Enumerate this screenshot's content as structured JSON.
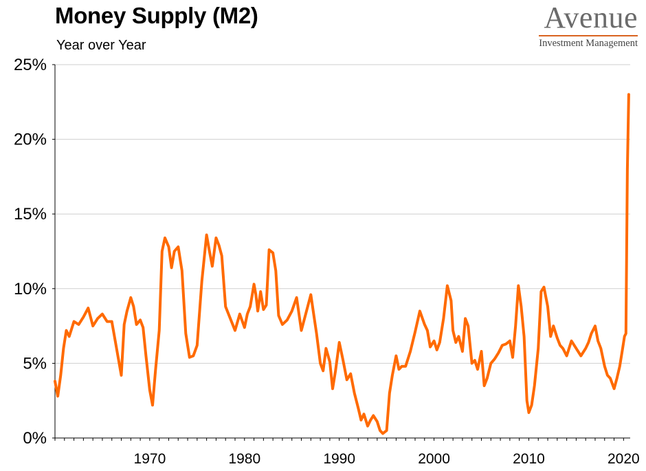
{
  "header": {
    "title": "Money Supply (M2)",
    "subtitle": "Year over Year"
  },
  "logo": {
    "name": "Avenue",
    "tagline": "Investment Management",
    "rule_color": "#d9621f"
  },
  "chart_data": {
    "type": "line",
    "title": "Money Supply (M2)",
    "subtitle": "Year over Year",
    "xlabel": "",
    "ylabel": "",
    "xlim": [
      1960,
      2020.7
    ],
    "ylim": [
      0,
      25
    ],
    "y_ticks": [
      0,
      5,
      10,
      15,
      20,
      25
    ],
    "y_tick_labels": [
      "0%",
      "5%",
      "10%",
      "15%",
      "20%",
      "25%"
    ],
    "x_ticks": [
      1970,
      1980,
      1990,
      2000,
      2010,
      2020
    ],
    "x_tick_labels": [
      "1970",
      "1980",
      "1990",
      "2000",
      "2010",
      "2020"
    ],
    "grid": true,
    "grid_axis": "y",
    "line_color": "#ff6a00",
    "series": [
      {
        "x": [
          1960.0,
          1960.3,
          1960.6,
          1960.9,
          1961.2,
          1961.5,
          1962.0,
          1962.5,
          1963.0,
          1963.5,
          1964.0,
          1964.5,
          1965.0,
          1965.5,
          1966.0,
          1966.5,
          1967.0,
          1967.3,
          1967.6,
          1968.0,
          1968.3,
          1968.6,
          1969.0,
          1969.3,
          1969.6,
          1970.0,
          1970.3,
          1970.6,
          1971.0,
          1971.3,
          1971.6,
          1972.0,
          1972.3,
          1972.6,
          1973.0,
          1973.4,
          1973.8,
          1974.2,
          1974.6,
          1975.0,
          1975.5,
          1976.0,
          1976.3,
          1976.6,
          1977.0,
          1977.3,
          1977.6,
          1978.0,
          1978.5,
          1979.0,
          1979.5,
          1980.0,
          1980.3,
          1980.6,
          1981.0,
          1981.2,
          1981.4,
          1981.7,
          1982.0,
          1982.3,
          1982.6,
          1983.0,
          1983.3,
          1983.6,
          1984.0,
          1984.5,
          1985.0,
          1985.5,
          1986.0,
          1986.5,
          1987.0,
          1987.3,
          1987.6,
          1988.0,
          1988.3,
          1988.6,
          1989.0,
          1989.3,
          1989.6,
          1990.0,
          1990.4,
          1990.8,
          1991.2,
          1991.6,
          1992.0,
          1992.3,
          1992.6,
          1993.0,
          1993.3,
          1993.6,
          1994.0,
          1994.3,
          1994.6,
          1995.0,
          1995.3,
          1995.6,
          1996.0,
          1996.3,
          1996.6,
          1997.0,
          1997.5,
          1998.0,
          1998.5,
          1999.0,
          1999.3,
          1999.6,
          2000.0,
          2000.3,
          2000.6,
          2001.0,
          2001.4,
          2001.8,
          2002.0,
          2002.3,
          2002.6,
          2003.0,
          2003.3,
          2003.6,
          2004.0,
          2004.3,
          2004.6,
          2005.0,
          2005.3,
          2005.6,
          2006.0,
          2006.4,
          2006.8,
          2007.2,
          2007.6,
          2008.0,
          2008.3,
          2008.6,
          2008.9,
          2009.2,
          2009.5,
          2009.8,
          2010.0,
          2010.3,
          2010.6,
          2011.0,
          2011.3,
          2011.6,
          2012.0,
          2012.3,
          2012.6,
          2013.0,
          2013.3,
          2013.6,
          2014.0,
          2014.5,
          2015.0,
          2015.5,
          2016.0,
          2016.3,
          2016.6,
          2017.0,
          2017.3,
          2017.6,
          2018.0,
          2018.3,
          2018.6,
          2019.0,
          2019.3,
          2019.6,
          2019.9,
          2020.1,
          2020.25,
          2020.4,
          2020.55
        ],
        "y": [
          3.8,
          2.8,
          4.2,
          6.0,
          7.2,
          6.8,
          7.8,
          7.6,
          8.1,
          8.7,
          7.5,
          8.0,
          8.3,
          7.8,
          7.8,
          6.0,
          4.2,
          7.6,
          8.5,
          9.4,
          8.8,
          7.6,
          7.9,
          7.4,
          5.5,
          3.2,
          2.2,
          4.5,
          7.2,
          12.5,
          13.4,
          12.8,
          11.4,
          12.5,
          12.8,
          11.2,
          7.0,
          5.4,
          5.5,
          6.2,
          10.5,
          13.6,
          12.5,
          11.5,
          13.4,
          12.9,
          12.2,
          8.8,
          8.0,
          7.2,
          8.3,
          7.4,
          8.3,
          8.8,
          10.3,
          9.6,
          8.5,
          9.8,
          8.6,
          8.9,
          12.6,
          12.4,
          11.2,
          8.2,
          7.6,
          7.9,
          8.5,
          9.4,
          7.2,
          8.4,
          9.6,
          8.3,
          7.0,
          5.0,
          4.5,
          6.0,
          5.1,
          3.3,
          4.5,
          6.4,
          5.2,
          3.9,
          4.3,
          3.0,
          2.0,
          1.2,
          1.6,
          0.8,
          1.2,
          1.5,
          1.1,
          0.5,
          0.3,
          0.5,
          3.0,
          4.2,
          5.5,
          4.6,
          4.8,
          4.8,
          5.8,
          7.1,
          8.5,
          7.6,
          7.2,
          6.1,
          6.5,
          5.9,
          6.4,
          8.0,
          10.2,
          9.2,
          7.2,
          6.4,
          6.8,
          5.8,
          8.0,
          7.5,
          5.0,
          5.2,
          4.6,
          5.8,
          3.5,
          4.0,
          5.0,
          5.3,
          5.7,
          6.2,
          6.3,
          6.5,
          5.4,
          7.5,
          10.2,
          8.8,
          6.8,
          2.5,
          1.7,
          2.2,
          3.5,
          6.0,
          9.8,
          10.1,
          8.8,
          6.8,
          7.5,
          6.7,
          6.2,
          6.0,
          5.5,
          6.5,
          6.0,
          5.5,
          6.0,
          6.4,
          7.0,
          7.5,
          6.5,
          6.0,
          4.8,
          4.2,
          4.0,
          3.3,
          4.0,
          4.8,
          6.0,
          6.8,
          7.0,
          18.0,
          23.0
        ]
      }
    ]
  }
}
